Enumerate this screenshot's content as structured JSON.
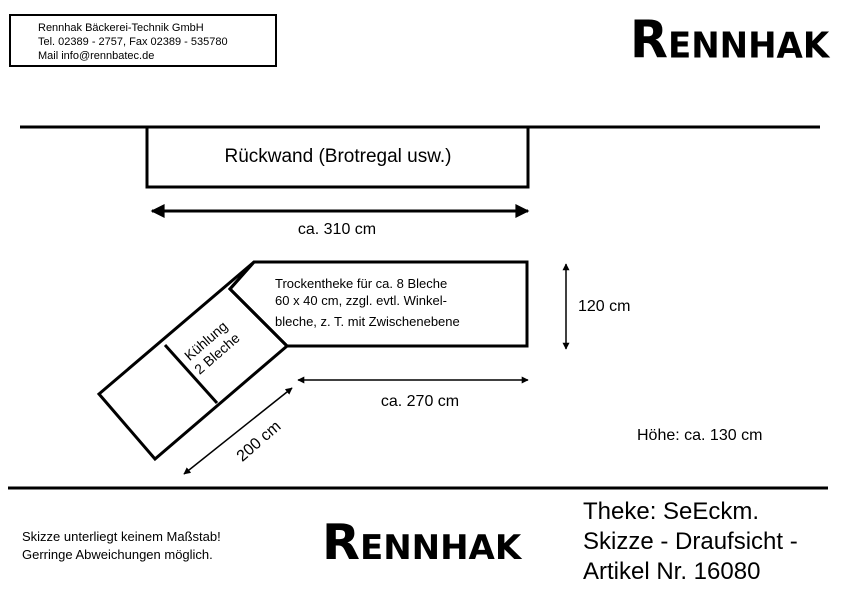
{
  "company": {
    "name": "Rennhak Bäckerei-Technik GmbH",
    "phone_line": "Tel. 02389 - 2757, Fax 02389 - 535780",
    "mail_line": "Mail info@rennbatec.de"
  },
  "logo": {
    "first_letter": "R",
    "rest": "ENNHAK"
  },
  "sketch": {
    "back_wall": "Rückwand (Brotregal usw.)",
    "width_back": "ca. 310 cm",
    "dry_counter": [
      "Trockentheke für ca. 8 Bleche",
      "60 x 40 cm, zzgl. evtl. Winkel-",
      "bleche, z. T. mit Zwischenebene"
    ],
    "cooling": [
      "Kühlung",
      "2 Bleche"
    ],
    "depth": "120 cm",
    "width_front": "ca. 270 cm",
    "width_angle": "200 cm",
    "height": "Höhe: ca. 130 cm"
  },
  "footer": {
    "note_lines": [
      "Skizze unterliegt keinem Maßstab!",
      "Gerringe Abweichungen möglich."
    ],
    "info_lines": [
      "Theke: SeEckm.",
      "Skizze - Draufsicht -",
      "Artikel Nr. 16080"
    ]
  }
}
